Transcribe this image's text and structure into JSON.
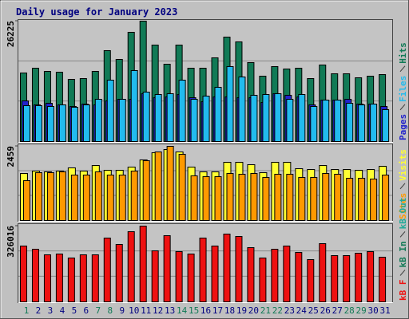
{
  "chart_data": [
    {
      "type": "bar",
      "title": "Daily usage for January 2023",
      "ylim": [
        0,
        26225
      ],
      "yticks": [
        26225
      ],
      "series": [
        {
          "name": "Hits",
          "color": "#117a56",
          "values": [
            14937,
            15980,
            15284,
            15110,
            13547,
            13721,
            15284,
            19800,
            17889,
            23794,
            26225,
            21015,
            16847,
            21015,
            15978,
            15978,
            18236,
            22752,
            21710,
            17194,
            14242,
            16326,
            15805,
            15978,
            13721,
            16673,
            14763,
            14763,
            13894,
            14242,
            14589
          ]
        },
        {
          "name": "Pages",
          "color": "#2222cc",
          "values": [
            8859,
            7990,
            8338,
            7990,
            7643,
            8164,
            7990,
            8859,
            9206,
            9206,
            10422,
            9553,
            9727,
            10248,
            9553,
            8685,
            9727,
            9727,
            9553,
            9553,
            8511,
            10422,
            10075,
            9727,
            7990,
            9032,
            9032,
            9206,
            8164,
            8164,
            7643
          ]
        },
        {
          "name": "Files",
          "color": "#22bbee",
          "values": [
            7816,
            7816,
            7643,
            7990,
            7469,
            7990,
            9206,
            13375,
            9206,
            15459,
            10770,
            10248,
            10422,
            13375,
            9206,
            9901,
            11812,
            16328,
            14070,
            10075,
            10248,
            10422,
            9206,
            10248,
            7643,
            9032,
            9032,
            8338,
            7990,
            8164,
            6948
          ]
        }
      ]
    },
    {
      "type": "bar",
      "ylim": [
        0,
        2459
      ],
      "yticks": [
        2459
      ],
      "series": [
        {
          "name": "Visits",
          "color": "#ffff33",
          "values": [
            1560,
            1639,
            1613,
            1639,
            1745,
            1639,
            1824,
            1666,
            1666,
            1771,
            2009,
            2247,
            2353,
            2274,
            1771,
            1613,
            1613,
            1930,
            1930,
            1851,
            1586,
            1930,
            1930,
            1719,
            1692,
            1824,
            1692,
            1692,
            1666,
            1692,
            1798
          ]
        },
        {
          "name": "Sites",
          "color": "#ff9900",
          "values": [
            1322,
            1586,
            1586,
            1613,
            1507,
            1507,
            1613,
            1507,
            1507,
            1639,
            1983,
            2274,
            2459,
            2195,
            1481,
            1454,
            1454,
            1560,
            1534,
            1560,
            1428,
            1534,
            1534,
            1428,
            1428,
            1560,
            1534,
            1401,
            1401,
            1375,
            1507
          ]
        }
      ]
    },
    {
      "type": "bar",
      "ylim": [
        0,
        326016
      ],
      "yticks": [
        326016
      ],
      "categories": [
        "1",
        "2",
        "3",
        "4",
        "5",
        "6",
        "7",
        "8",
        "9",
        "10",
        "11",
        "12",
        "13",
        "14",
        "15",
        "16",
        "17",
        "18",
        "19",
        "20",
        "21",
        "22",
        "23",
        "24",
        "25",
        "26",
        "27",
        "28",
        "29",
        "30",
        "31"
      ],
      "category_colors": [
        "#117a56",
        "#000080",
        "#000080",
        "#000080",
        "#000080",
        "#000080",
        "#117a56",
        "#117a56",
        "#000080",
        "#000080",
        "#000080",
        "#000080",
        "#000080",
        "#117a56",
        "#117a56",
        "#000080",
        "#000080",
        "#000080",
        "#000080",
        "#000080",
        "#117a56",
        "#117a56",
        "#000080",
        "#000080",
        "#000080",
        "#000080",
        "#000080",
        "#117a56",
        "#117a56",
        "#000080",
        "#000080"
      ],
      "series": [
        {
          "name": "kB F",
          "color": "#ee1111",
          "values": [
            240240,
            226512,
            202488,
            205920,
            188760,
            202488,
            202488,
            274560,
            247104,
            302016,
            326016,
            219648,
            284856,
            216216,
            205920,
            274560,
            240240,
            291720,
            281424,
            233376,
            188760,
            226512,
            240240,
            212784,
            181896,
            250536,
            199056,
            199056,
            209352,
            216216,
            192192
          ]
        }
      ],
      "other_legend_entries": [
        {
          "name": "kB In",
          "color": "#117a56"
        },
        {
          "name": "kB Out",
          "color": "#22aa99"
        }
      ]
    }
  ]
}
